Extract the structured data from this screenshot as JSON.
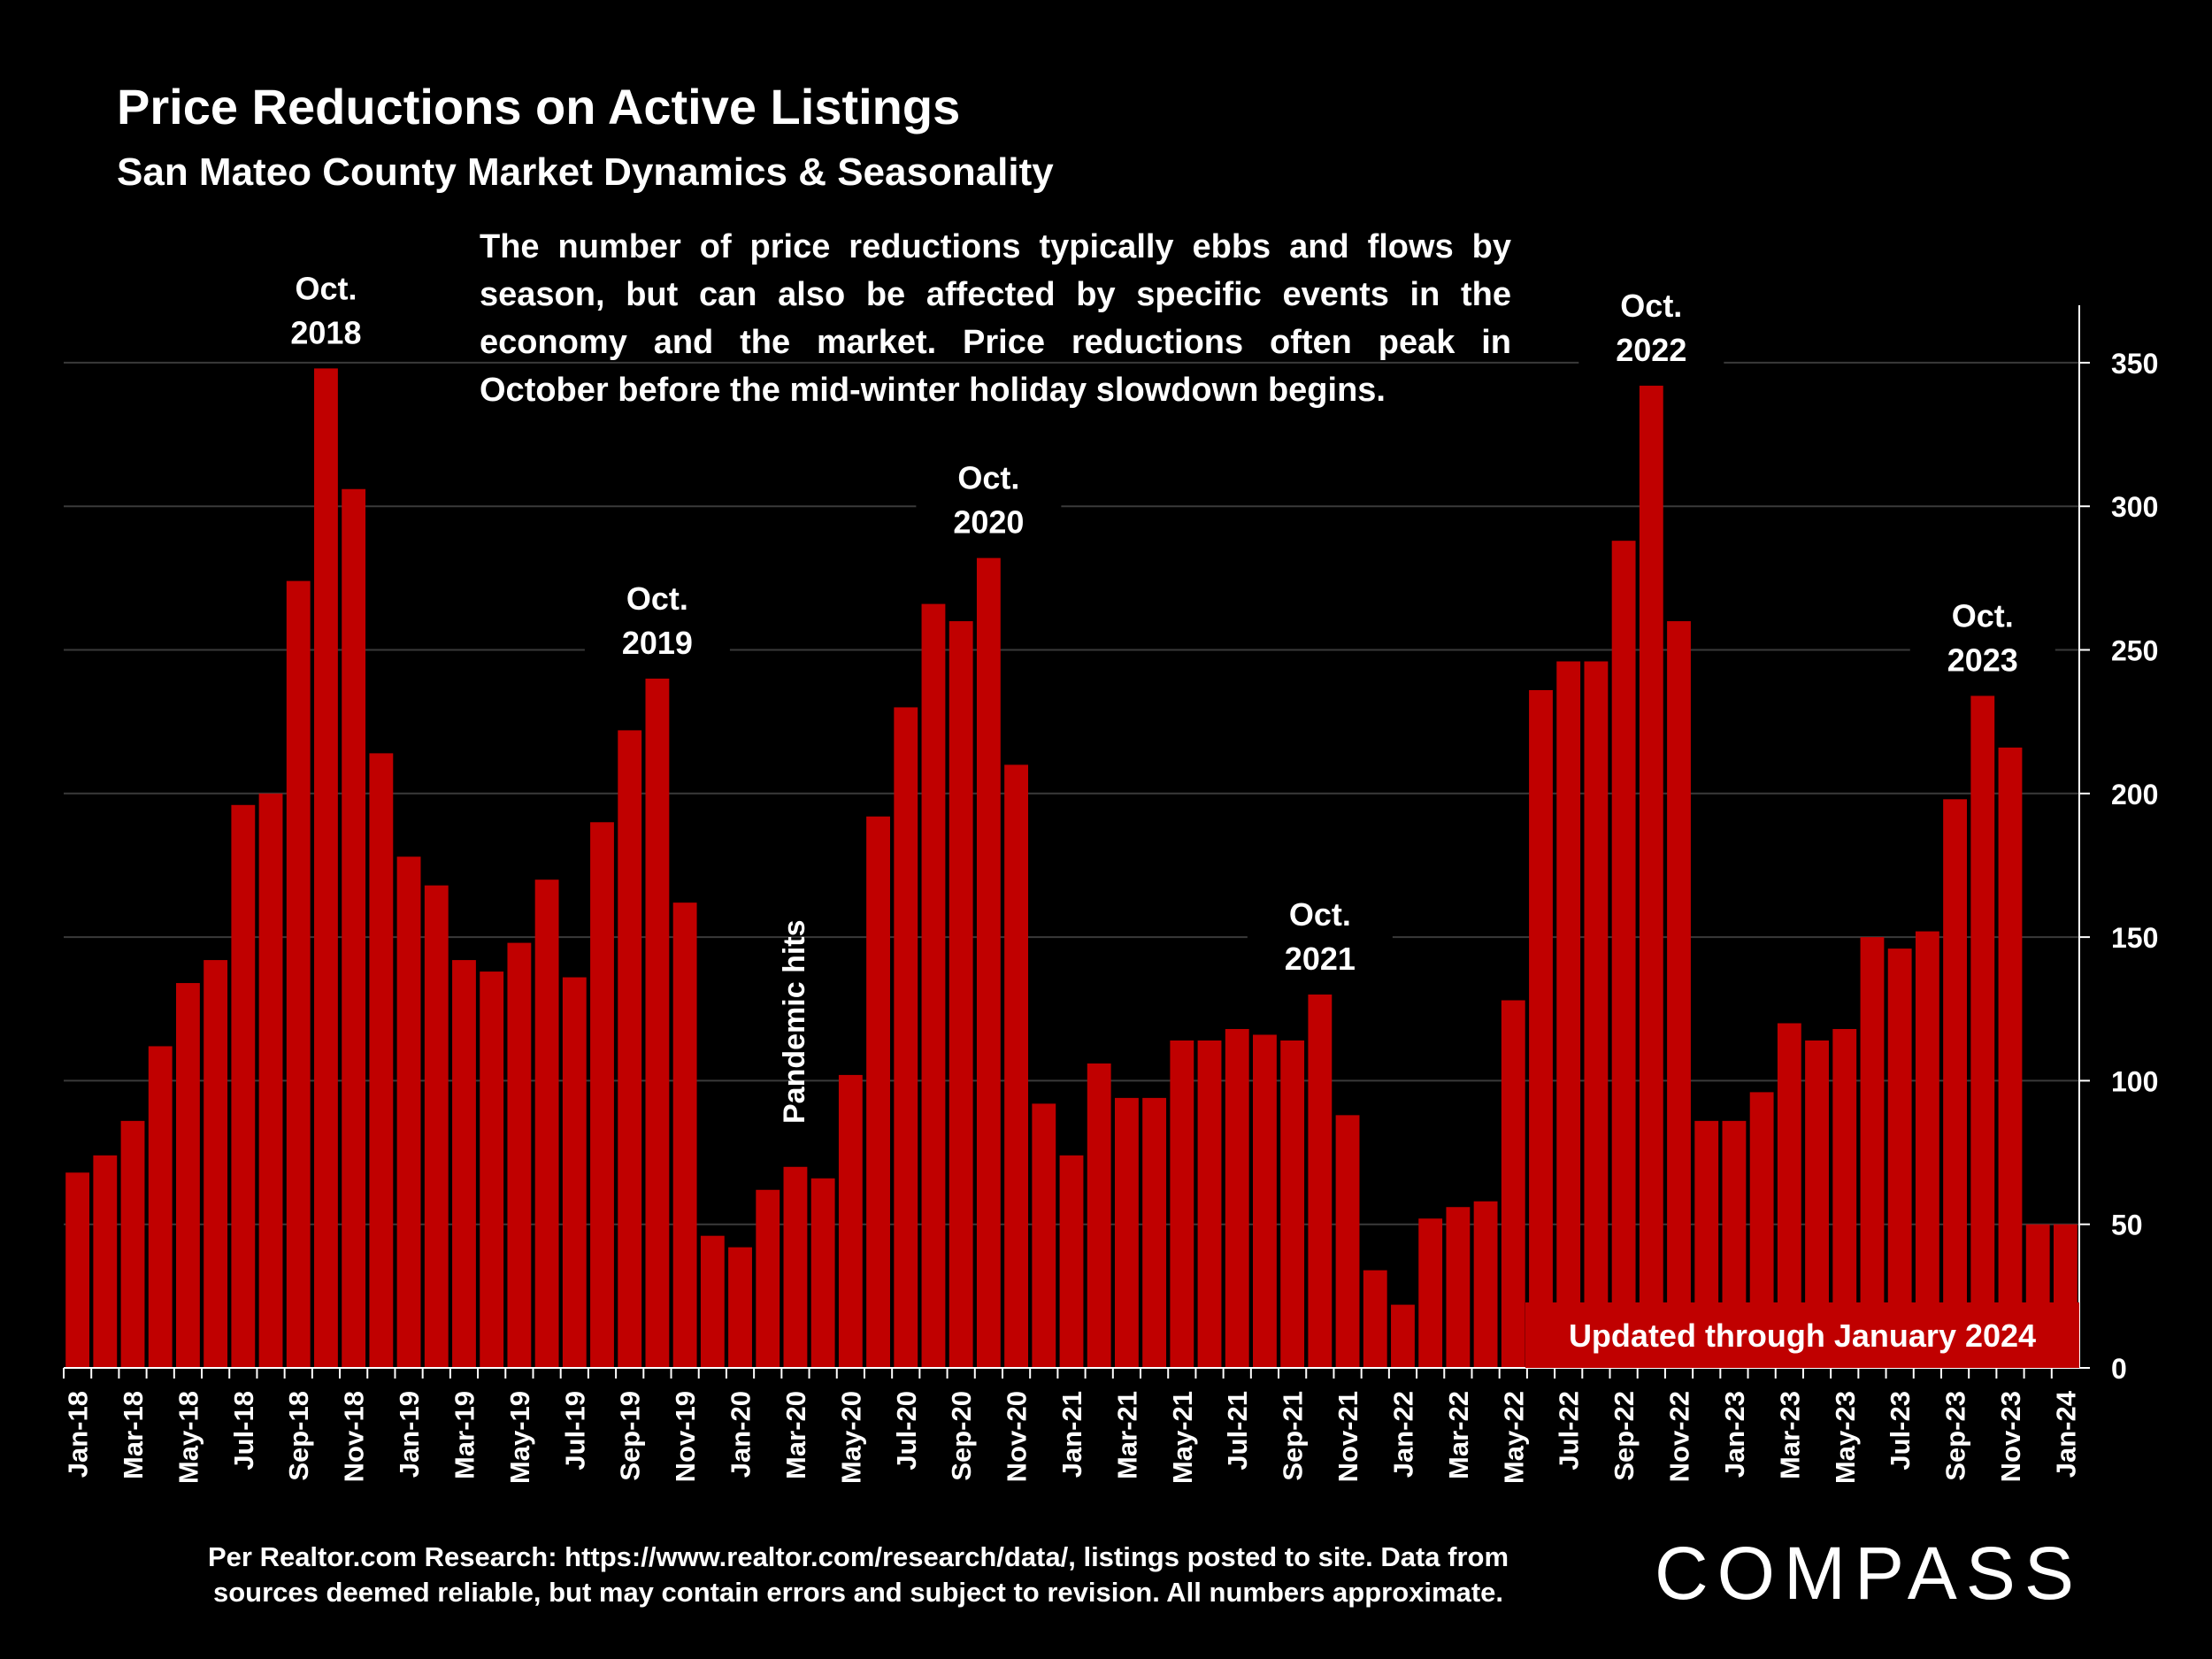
{
  "title": "Price Reductions on Active Listings",
  "subtitle": "San Mateo County Market Dynamics & Seasonality",
  "annotation": "The number of price reductions typically ebbs and flows by season, but can also be affected by specific events in the economy and the market. Price reductions often peak in October before the mid-winter holiday slowdown begins.",
  "source_line1": "Per Realtor.com Research:  https://www.realtor.com/research/data/, listings posted to site. Data from",
  "source_line2": "sources deemed reliable, but may contain errors and subject to revision. All numbers approximate.",
  "brand": "COMPASS",
  "updated_label": "Updated through January 2024",
  "colors": {
    "bar": "#c00000",
    "background": "#000000",
    "text": "#ffffff",
    "grid": "#3a3a3a"
  },
  "chart_data": {
    "type": "bar",
    "title": "Price Reductions on Active Listings",
    "subtitle": "San Mateo County Market Dynamics & Seasonality",
    "ylim": [
      0,
      370
    ],
    "yticks": [
      0,
      50,
      100,
      150,
      200,
      250,
      300,
      350
    ],
    "y_axis_side": "right",
    "grid": true,
    "categories": [
      "Jan-18",
      "Feb-18",
      "Mar-18",
      "Apr-18",
      "May-18",
      "Jun-18",
      "Jul-18",
      "Aug-18",
      "Sep-18",
      "Oct-18",
      "Nov-18",
      "Dec-18",
      "Jan-19",
      "Feb-19",
      "Mar-19",
      "Apr-19",
      "May-19",
      "Jun-19",
      "Jul-19",
      "Aug-19",
      "Sep-19",
      "Oct-19",
      "Nov-19",
      "Dec-19",
      "Jan-20",
      "Feb-20",
      "Mar-20",
      "Apr-20",
      "May-20",
      "Jun-20",
      "Jul-20",
      "Aug-20",
      "Sep-20",
      "Oct-20",
      "Nov-20",
      "Dec-20",
      "Jan-21",
      "Feb-21",
      "Mar-21",
      "Apr-21",
      "May-21",
      "Jun-21",
      "Jul-21",
      "Aug-21",
      "Sep-21",
      "Oct-21",
      "Nov-21",
      "Dec-21",
      "Jan-22",
      "Feb-22",
      "Mar-22",
      "Apr-22",
      "May-22",
      "Jun-22",
      "Jul-22",
      "Aug-22",
      "Sep-22",
      "Oct-22",
      "Nov-22",
      "Dec-22",
      "Jan-23",
      "Feb-23",
      "Mar-23",
      "Apr-23",
      "May-23",
      "Jun-23",
      "Jul-23",
      "Aug-23",
      "Sep-23",
      "Oct-23",
      "Nov-23",
      "Dec-23",
      "Jan-24"
    ],
    "values": [
      68,
      74,
      86,
      112,
      134,
      142,
      196,
      200,
      274,
      348,
      306,
      214,
      178,
      168,
      142,
      138,
      148,
      170,
      136,
      190,
      222,
      240,
      162,
      46,
      42,
      62,
      70,
      66,
      102,
      192,
      230,
      266,
      260,
      282,
      210,
      92,
      74,
      106,
      94,
      94,
      114,
      114,
      118,
      116,
      114,
      130,
      88,
      34,
      22,
      52,
      56,
      58,
      128,
      236,
      246,
      246,
      288,
      342,
      260,
      86,
      86,
      96,
      120,
      114,
      118,
      150,
      146,
      152,
      198,
      234,
      216,
      50,
      50
    ],
    "xtick_labels": [
      "Jan-18",
      "Mar-18",
      "May-18",
      "Jul-18",
      "Sep-18",
      "Nov-18",
      "Jan-19",
      "Mar-19",
      "May-19",
      "Jul-19",
      "Sep-19",
      "Nov-19",
      "Jan-20",
      "Mar-20",
      "May-20",
      "Jul-20",
      "Sep-20",
      "Nov-20",
      "Jan-21",
      "Mar-21",
      "May-21",
      "Jul-21",
      "Sep-21",
      "Nov-21",
      "Jan-22",
      "Mar-22",
      "May-22",
      "Jul-22",
      "Sep-22",
      "Nov-22",
      "Jan-23",
      "Mar-23",
      "May-23",
      "Jul-23",
      "Sep-23",
      "Nov-23",
      "Jan-24"
    ],
    "annotations": [
      {
        "index": 9,
        "lines": [
          "Oct.",
          "2018"
        ]
      },
      {
        "index": 21,
        "lines": [
          "Oct.",
          "2019"
        ]
      },
      {
        "index": 33,
        "lines": [
          "Oct.",
          "2020"
        ]
      },
      {
        "index": 45,
        "lines": [
          "Oct.",
          "2021"
        ]
      },
      {
        "index": 57,
        "lines": [
          "Oct.",
          "2022"
        ]
      },
      {
        "index": 69,
        "lines": [
          "Oct.",
          "2023"
        ]
      },
      {
        "index": 26,
        "lines": [
          "Pandemic hits"
        ],
        "rotated": true
      }
    ]
  }
}
